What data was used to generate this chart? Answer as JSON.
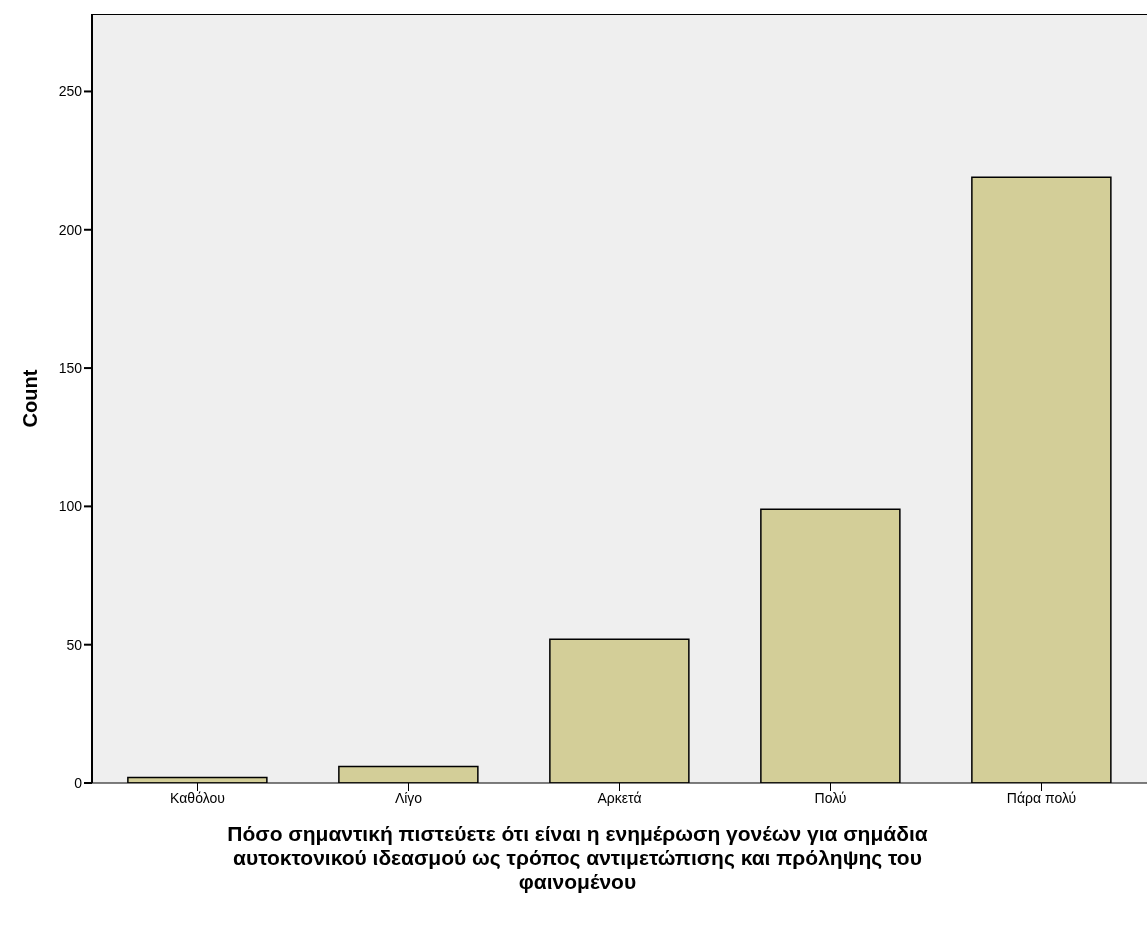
{
  "chart_data": {
    "type": "bar",
    "xlabel": "Πόσο σημαντική πιστεύετε ότι είναι η ενημέρωση γονέων για σημάδια αυτοκτονικού ιδεασμού ως τρόπος  αντιμετώπισης και πρόληψης του φαινομένου",
    "ylabel": "Count",
    "categories": [
      "Καθόλου",
      "Λίγο",
      "Αρκετά",
      "Πολύ",
      "Πάρα πολύ"
    ],
    "values": [
      2,
      6,
      52,
      99,
      219
    ],
    "color": "#d3ce98",
    "ylim": [
      0,
      278
    ],
    "yticks": [
      0,
      50,
      100,
      150,
      200,
      250
    ],
    "grid": false
  }
}
